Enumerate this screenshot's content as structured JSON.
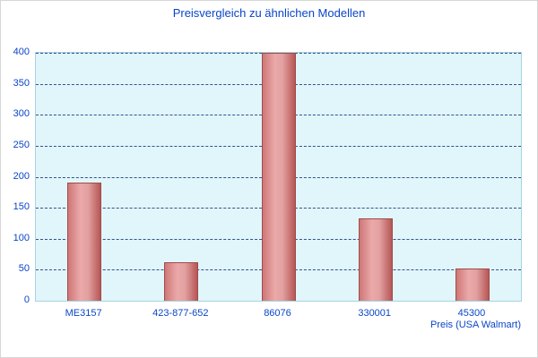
{
  "chart_data": {
    "type": "bar",
    "title": "Preisvergleich zu ähnlichen Modellen",
    "categories": [
      "ME3157",
      "423-877-652",
      "86076",
      "330001",
      "45300"
    ],
    "values": [
      190,
      62,
      400,
      133,
      52
    ],
    "xlabel": "Preis (USA Walmart)",
    "ylabel": "",
    "ylim": [
      0,
      400
    ],
    "ytick_step": 50,
    "grid": "horizontal-dashed",
    "legend": "none",
    "colors": {
      "title_text": "#0a46c8",
      "axis_text": "#0a46c8",
      "plot_background": "#e1f6fa",
      "plot_border": "#a8d3e2",
      "gridline": "#33518f",
      "bar_light": "#eba9a9",
      "bar_dark": "#b75656",
      "bar_border": "#a04b4b",
      "page_background": "#ffffff"
    }
  }
}
